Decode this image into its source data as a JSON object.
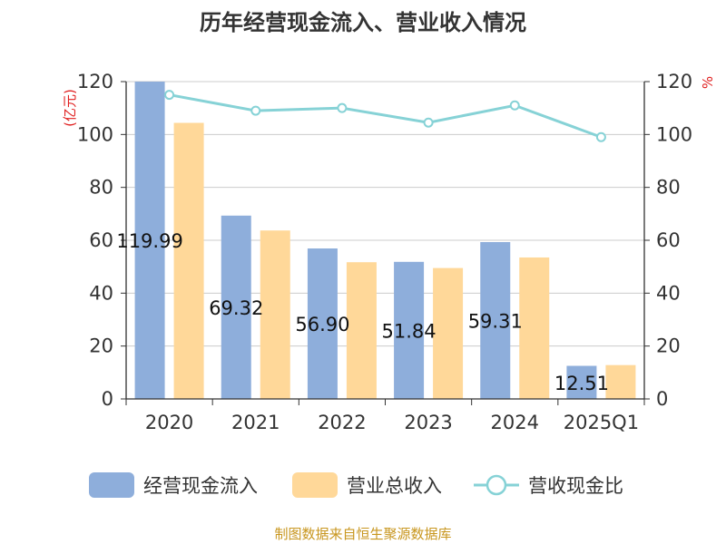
{
  "chart_data": {
    "type": "bar",
    "title": "历年经营现金流入、营业收入情况",
    "categories": [
      "2020",
      "2021",
      "2022",
      "2023",
      "2024",
      "2025Q1"
    ],
    "y_left": {
      "unit": "(亿元)",
      "range": [
        0,
        120
      ],
      "ticks": [
        0,
        20,
        40,
        60,
        80,
        100,
        120
      ]
    },
    "y_right": {
      "unit": "%",
      "range": [
        0,
        120
      ],
      "ticks": [
        0,
        20,
        40,
        60,
        80,
        100,
        120
      ]
    },
    "series": [
      {
        "name": "经营现金流入",
        "type": "bar",
        "axis": "left",
        "color": "#8eaedb",
        "values": [
          119.99,
          69.32,
          56.9,
          51.84,
          59.31,
          12.51
        ],
        "labels": [
          "119.99",
          "69.32",
          "56.90",
          "51.84",
          "59.31",
          "12.51"
        ]
      },
      {
        "name": "营业总收入",
        "type": "bar",
        "axis": "left",
        "color": "#ffd899",
        "values": [
          104.4,
          63.7,
          51.7,
          49.5,
          53.5,
          12.8
        ]
      },
      {
        "name": "营收现金比",
        "type": "line",
        "axis": "right",
        "color": "#86d2d6",
        "values": [
          115.0,
          109.0,
          110.0,
          104.5,
          111.0,
          99.0
        ]
      }
    ],
    "grid": true,
    "legend_position": "bottom"
  },
  "source_note": "制图数据来自恒生聚源数据库"
}
